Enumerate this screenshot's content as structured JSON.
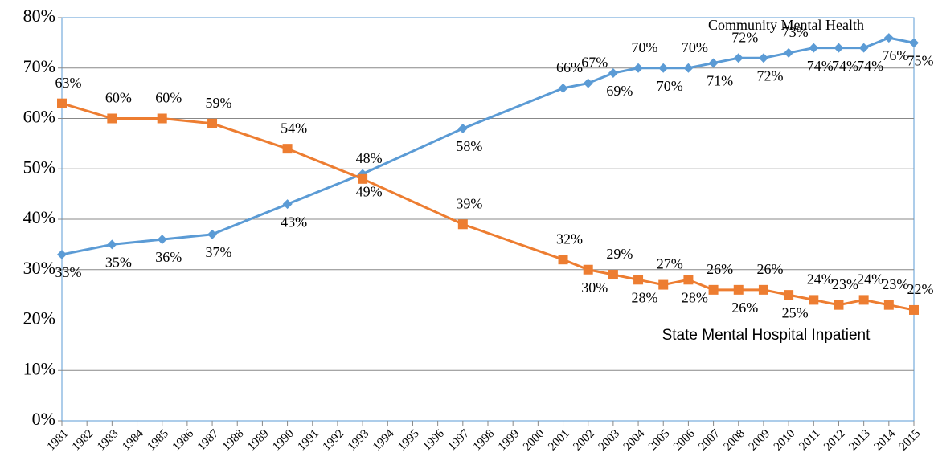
{
  "chart_data": {
    "type": "line",
    "annotations": [
      "Community Mental Health",
      "State Mental Hospital Inpatient"
    ],
    "x": [
      1981,
      1983,
      1985,
      1987,
      1990,
      1993,
      1997,
      2001,
      2002,
      2003,
      2004,
      2005,
      2006,
      2007,
      2008,
      2009,
      2010,
      2011,
      2012,
      2013,
      2014,
      2015
    ],
    "xlim": [
      1981,
      2015
    ],
    "xticks": [
      1981,
      1982,
      1983,
      1984,
      1985,
      1986,
      1987,
      1988,
      1989,
      1990,
      1991,
      1992,
      1993,
      1994,
      1995,
      1996,
      1997,
      1998,
      1999,
      2000,
      2001,
      2002,
      2003,
      2004,
      2005,
      2006,
      2007,
      2008,
      2009,
      2010,
      2011,
      2012,
      2013,
      2014,
      2015
    ],
    "ylim": [
      0,
      80
    ],
    "yticks": [
      {
        "value": 0,
        "label": "0%"
      },
      {
        "value": 10,
        "label": "10%"
      },
      {
        "value": 20,
        "label": "20%"
      },
      {
        "value": 30,
        "label": "30%"
      },
      {
        "value": 40,
        "label": "40%"
      },
      {
        "value": 50,
        "label": "50%"
      },
      {
        "value": 60,
        "label": "60%"
      },
      {
        "value": 70,
        "label": "70%"
      },
      {
        "value": 80,
        "label": "80%"
      }
    ],
    "grid": true,
    "series": [
      {
        "color": "#5b9bd5",
        "marker": "diamond",
        "values": [
          33,
          35,
          36,
          37,
          43,
          49,
          58,
          66,
          67,
          69,
          70,
          70,
          70,
          71,
          72,
          72,
          73,
          74,
          74,
          74,
          76,
          75
        ],
        "value_labels": [
          "33%",
          "35%",
          "36%",
          "37%",
          "43%",
          "49%",
          "58%",
          "66%",
          "67%",
          "69%",
          "70%",
          "70%",
          "70%",
          "71%",
          "72%",
          "72%",
          "73%",
          "74%",
          "74%",
          "74%",
          "76%",
          "75%"
        ]
      },
      {
        "color": "#ed7d31",
        "marker": "square",
        "values": [
          63,
          60,
          60,
          59,
          54,
          48,
          39,
          32,
          30,
          29,
          28,
          27,
          28,
          26,
          26,
          26,
          25,
          24,
          23,
          24,
          23,
          22
        ],
        "value_labels": [
          "63%",
          "60%",
          "60%",
          "59%",
          "54%",
          "48%",
          "39%",
          "32%",
          "30%",
          "29%",
          "28%",
          "27%",
          "28%",
          "26%",
          "26%",
          "26%",
          "25%",
          "24%",
          "23%",
          "24%",
          "23%",
          "22%"
        ]
      }
    ]
  }
}
